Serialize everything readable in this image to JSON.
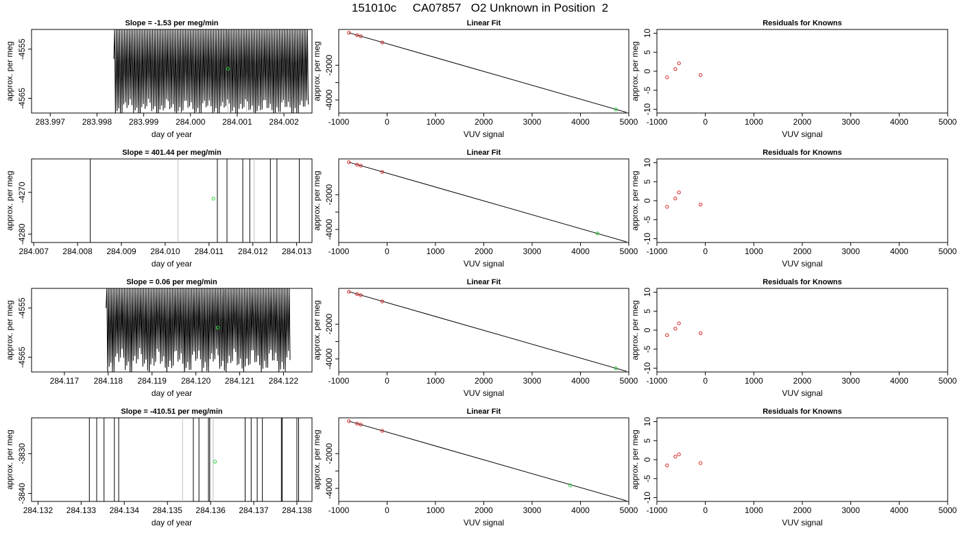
{
  "figure": {
    "title": "151010c     CA07857   O2 Unknown in Position  2"
  },
  "styles": {
    "trace_color": "#000000",
    "fit_line_color": "#000000",
    "known_point_color": "#d62728",
    "unknown_point_color": "#2ecc40",
    "gray_marker_color": "#bfbfbf"
  },
  "chart_data": [
    {
      "type": "line",
      "title": "Slope =  -1.53  per meg/min",
      "xlabel": "day of year",
      "ylabel": "approx. per meg",
      "xlim": [
        283.9966,
        284.0026
      ],
      "ylim": [
        -4568,
        -4551
      ],
      "xticks": [
        "283.997",
        "283.998",
        "283.999",
        "284.000",
        "284.001",
        "284.002"
      ],
      "yticks": [
        "-4555",
        "-4565"
      ],
      "trace": {
        "pattern": "oscillation",
        "x_start": 283.99836,
        "x_end": 284.00252,
        "cycles": 118,
        "y_top": -4551,
        "y_bottom_range": [
          -4565,
          -4569
        ],
        "start_min": -4557
      },
      "gray_markers_x": [
        284.0008,
        284.0012
      ],
      "unknown_point": {
        "x": 284.0008,
        "y": -4559
      }
    },
    {
      "type": "scatter",
      "title": "Linear Fit",
      "xlabel": "VUV signal",
      "ylabel": "approx. per meg",
      "xlim": [
        -1000,
        5000
      ],
      "ylim": [
        -4750,
        60
      ],
      "xticks": [
        -1000,
        0,
        1000,
        2000,
        3000,
        4000,
        5000
      ],
      "yticks": [
        -2000,
        -3000,
        -4000
      ],
      "ytick_labels": [
        "-2000",
        "",
        "-4000"
      ],
      "fit_line": {
        "x": [
          -790,
          4950
        ],
        "y": [
          -130,
          -4710
        ]
      },
      "known_points": {
        "x": [
          -790,
          -620,
          -545,
          -100
        ],
        "y": [
          -130,
          -270,
          -330,
          -690
        ]
      },
      "unknown_point": {
        "x": 4730,
        "y": -4540
      }
    },
    {
      "type": "scatter",
      "title": "Residuals for Knowns",
      "xlabel": "VUV signal",
      "ylabel": "approx. per meg",
      "xlim": [
        -1000,
        5000
      ],
      "ylim": [
        -11,
        11
      ],
      "xticks": [
        -1000,
        0,
        1000,
        2000,
        3000,
        4000,
        5000
      ],
      "yticks": [
        10,
        5,
        0,
        -5,
        -10
      ],
      "points": {
        "x": [
          -790,
          -620,
          -545,
          -100
        ],
        "y": [
          -1.6,
          0.6,
          2.1,
          -1.0
        ]
      }
    },
    {
      "type": "line",
      "title": "Slope =  401.44  per meg/min",
      "xlabel": "day of year",
      "ylabel": "approx. per meg",
      "xlim": [
        284.00695,
        284.01335
      ],
      "ylim": [
        -4282,
        -4262
      ],
      "xticks": [
        "284.007",
        "284.008",
        "284.009",
        "284.010",
        "284.011",
        "284.012",
        "284.013"
      ],
      "yticks": [
        "-4270",
        "-4280"
      ],
      "vlines_x": [
        284.00829,
        284.01119,
        284.01141,
        284.01177,
        284.01193,
        284.0124,
        284.01255,
        284.01306
      ],
      "gray_markers_x": [
        284.01029,
        284.01203
      ],
      "unknown_point": {
        "x": 284.0111,
        "y": -4271.5
      }
    },
    {
      "type": "scatter",
      "title": "Linear Fit",
      "xlabel": "VUV signal",
      "ylabel": "approx. per meg",
      "xlim": [
        -1000,
        5000
      ],
      "ylim": [
        -4750,
        60
      ],
      "xticks": [
        -1000,
        0,
        1000,
        2000,
        3000,
        4000,
        5000
      ],
      "yticks": [
        -2000,
        -3000,
        -4000
      ],
      "ytick_labels": [
        "-2000",
        "",
        "-4000"
      ],
      "fit_line": {
        "x": [
          -790,
          4950
        ],
        "y": [
          -130,
          -4710
        ]
      },
      "known_points": {
        "x": [
          -790,
          -620,
          -545,
          -100
        ],
        "y": [
          -130,
          -270,
          -330,
          -690
        ]
      },
      "unknown_point": {
        "x": 4350,
        "y": -4230
      }
    },
    {
      "type": "scatter",
      "title": "Residuals for Knowns",
      "xlabel": "VUV signal",
      "ylabel": "approx. per meg",
      "xlim": [
        -1000,
        5000
      ],
      "ylim": [
        -11,
        11
      ],
      "xticks": [
        -1000,
        0,
        1000,
        2000,
        3000,
        4000,
        5000
      ],
      "yticks": [
        10,
        5,
        0,
        -5,
        -10
      ],
      "points": {
        "x": [
          -790,
          -620,
          -545,
          -100
        ],
        "y": [
          -1.6,
          0.6,
          2.2,
          -1.0
        ]
      }
    },
    {
      "type": "line",
      "title": "Slope =  0.06  per meg/min",
      "xlabel": "day of year",
      "ylabel": "approx. per meg",
      "xlim": [
        284.11625,
        284.12265
      ],
      "ylim": [
        -4568,
        -4551
      ],
      "xticks": [
        "284.117",
        "284.118",
        "284.119",
        "284.120",
        "284.121",
        "284.122"
      ],
      "yticks": [
        "-4555",
        "-4565"
      ],
      "trace": {
        "pattern": "oscillation",
        "x_start": 284.11795,
        "x_end": 284.12215,
        "cycles": 115,
        "y_top": -4551,
        "y_bottom_range": [
          -4563,
          -4569
        ],
        "start_min": -4555
      },
      "gray_markers_x": [
        284.11975,
        284.12065
      ],
      "unknown_point": {
        "x": 284.1205,
        "y": -4559
      }
    },
    {
      "type": "scatter",
      "title": "Linear Fit",
      "xlabel": "VUV signal",
      "ylabel": "approx. per meg",
      "xlim": [
        -1000,
        5000
      ],
      "ylim": [
        -4750,
        60
      ],
      "xticks": [
        -1000,
        0,
        1000,
        2000,
        3000,
        4000,
        5000
      ],
      "yticks": [
        -2000,
        -3000,
        -4000
      ],
      "ytick_labels": [
        "-2000",
        "",
        "-4000"
      ],
      "fit_line": {
        "x": [
          -790,
          4950
        ],
        "y": [
          -130,
          -4710
        ]
      },
      "known_points": {
        "x": [
          -790,
          -620,
          -545,
          -100
        ],
        "y": [
          -130,
          -270,
          -330,
          -690
        ]
      },
      "unknown_point": {
        "x": 4730,
        "y": -4540
      }
    },
    {
      "type": "scatter",
      "title": "Residuals for Knowns",
      "xlabel": "VUV signal",
      "ylabel": "approx. per meg",
      "xlim": [
        -1000,
        5000
      ],
      "ylim": [
        -11,
        11
      ],
      "xticks": [
        -1000,
        0,
        1000,
        2000,
        3000,
        4000,
        5000
      ],
      "yticks": [
        10,
        5,
        0,
        -5,
        -10
      ],
      "points": {
        "x": [
          -790,
          -620,
          -545,
          -100
        ],
        "y": [
          -1.3,
          0.4,
          1.8,
          -0.8
        ]
      }
    },
    {
      "type": "line",
      "title": "Slope =  -410.51  per meg/min",
      "xlabel": "day of year",
      "ylabel": "approx. per meg",
      "xlim": [
        284.13185,
        284.13835
      ],
      "ylim": [
        -3842,
        -3821
      ],
      "xticks": [
        "284.132",
        "284.133",
        "284.134",
        "284.135",
        "284.136",
        "284.137",
        "284.138"
      ],
      "yticks": [
        "-3830",
        "-3840"
      ],
      "vlines_x": [
        284.13319,
        284.13336,
        284.13353,
        284.13377,
        284.13387,
        284.1356,
        284.13573,
        284.13595,
        284.13598,
        284.1368,
        284.13694,
        284.13708,
        284.1372,
        284.13764,
        284.13766,
        284.138,
        284.13804
      ],
      "gray_markers_x": [
        284.13535,
        284.13606
      ],
      "unknown_point": {
        "x": 284.1361,
        "y": -3832
      }
    },
    {
      "type": "scatter",
      "title": "Linear Fit",
      "xlabel": "VUV signal",
      "ylabel": "approx. per meg",
      "xlim": [
        -1000,
        5000
      ],
      "ylim": [
        -4750,
        60
      ],
      "xticks": [
        -1000,
        0,
        1000,
        2000,
        3000,
        4000,
        5000
      ],
      "yticks": [
        -2000,
        -3000,
        -4000
      ],
      "ytick_labels": [
        "-2000",
        "",
        "-4000"
      ],
      "fit_line": {
        "x": [
          -790,
          4950
        ],
        "y": [
          -130,
          -4710
        ]
      },
      "known_points": {
        "x": [
          -790,
          -620,
          -545,
          -100
        ],
        "y": [
          -130,
          -270,
          -330,
          -690
        ]
      },
      "unknown_point": {
        "x": 3790,
        "y": -3830
      }
    },
    {
      "type": "scatter",
      "title": "Residuals for Knowns",
      "xlabel": "VUV signal",
      "ylabel": "approx. per meg",
      "xlim": [
        -1000,
        5000
      ],
      "ylim": [
        -11,
        11
      ],
      "xticks": [
        -1000,
        0,
        1000,
        2000,
        3000,
        4000,
        5000
      ],
      "yticks": [
        10,
        5,
        0,
        -5,
        -10
      ],
      "points": {
        "x": [
          -790,
          -620,
          -545,
          -100
        ],
        "y": [
          -1.5,
          0.8,
          1.4,
          -0.9
        ]
      }
    }
  ]
}
